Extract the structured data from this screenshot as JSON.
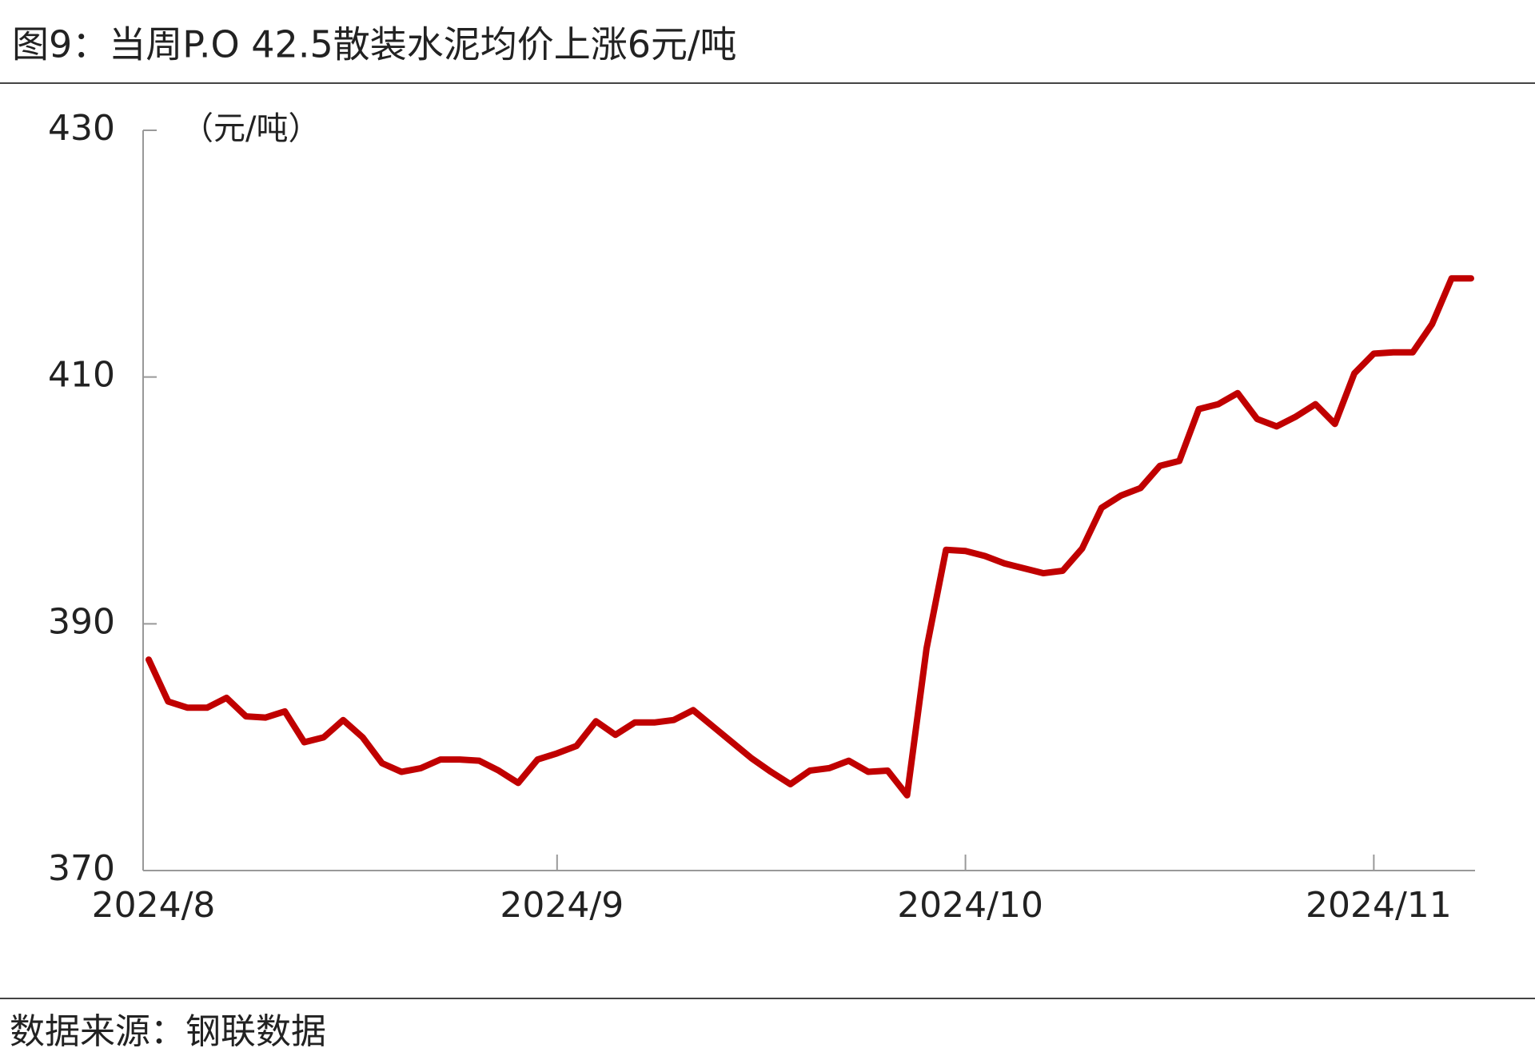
{
  "chart_data": {
    "type": "line",
    "title": "图9：当周P.O 42.5散装水泥均价上涨6元/吨",
    "y_label": "（元/吨）",
    "source": "数据来源：钢联数据",
    "categories": [
      "2024/8",
      null,
      null,
      null,
      null,
      null,
      null,
      null,
      null,
      null,
      null,
      null,
      null,
      null,
      null,
      null,
      null,
      null,
      null,
      null,
      null,
      "2024/9",
      null,
      null,
      null,
      null,
      null,
      null,
      null,
      null,
      null,
      null,
      null,
      null,
      null,
      null,
      null,
      null,
      null,
      null,
      null,
      null,
      "2024/10",
      null,
      null,
      null,
      null,
      null,
      null,
      null,
      null,
      null,
      null,
      null,
      null,
      null,
      null,
      null,
      null,
      null,
      null,
      null,
      null,
      "2024/11",
      null,
      null,
      null,
      null,
      null
    ],
    "series": [
      {
        "name": "P.O 42.5散装水泥均价",
        "color": "#c00000",
        "values": [
          387.1,
          383.7,
          383.2,
          383.2,
          384.0,
          382.5,
          382.4,
          382.9,
          380.4,
          380.8,
          382.2,
          380.8,
          378.7,
          378.0,
          378.3,
          379.0,
          379.0,
          378.9,
          378.1,
          377.1,
          379.0,
          379.5,
          380.1,
          382.1,
          381.0,
          382.0,
          382.0,
          382.2,
          383.0,
          381.7,
          380.4,
          379.1,
          378.0,
          377.0,
          378.1,
          378.3,
          378.9,
          378.0,
          378.1,
          376.1,
          388.0,
          396.0,
          395.9,
          395.5,
          394.9,
          394.5,
          394.1,
          394.3,
          396.1,
          399.4,
          400.4,
          401.0,
          402.8,
          403.2,
          407.4,
          407.8,
          408.7,
          406.6,
          406.0,
          406.8,
          407.8,
          406.2,
          410.3,
          411.9,
          412.0,
          412.0,
          414.3,
          418.0,
          418.0
        ]
      }
    ],
    "ylim": [
      370,
      430
    ],
    "yticks": [
      370,
      390,
      410,
      430
    ]
  }
}
